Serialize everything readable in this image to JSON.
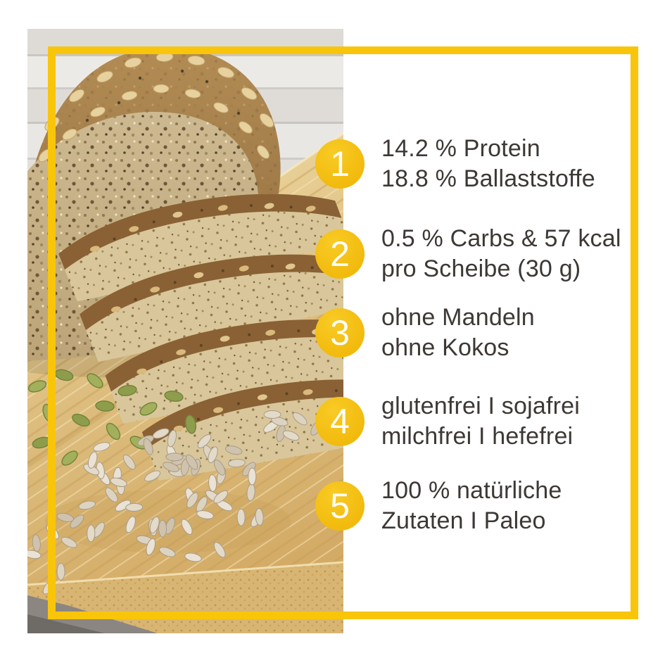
{
  "page": {
    "background": "#FFFFFF"
  },
  "frame": {
    "color": "#F8C50A"
  },
  "badge": {
    "color": "#F2BA0D",
    "number_color": "#FFFFFF"
  },
  "text": {
    "color": "#3D3835"
  },
  "features": [
    {
      "number": "1",
      "line1": "14.2 % Protein",
      "line2": "18.8 % Ballaststoffe"
    },
    {
      "number": "2",
      "line1": "0.5 % Carbs & 57 kcal",
      "line2": "pro Scheibe (30 g)"
    },
    {
      "number": "3",
      "line1": "ohne Mandeln",
      "line2": "ohne Kokos"
    },
    {
      "number": "4",
      "line1": "glutenfrei I sojafrei",
      "line2": "milchfrei I hefefrei"
    },
    {
      "number": "5",
      "line1": "100 % natürliche",
      "line2": "Zutaten I Paleo"
    }
  ]
}
